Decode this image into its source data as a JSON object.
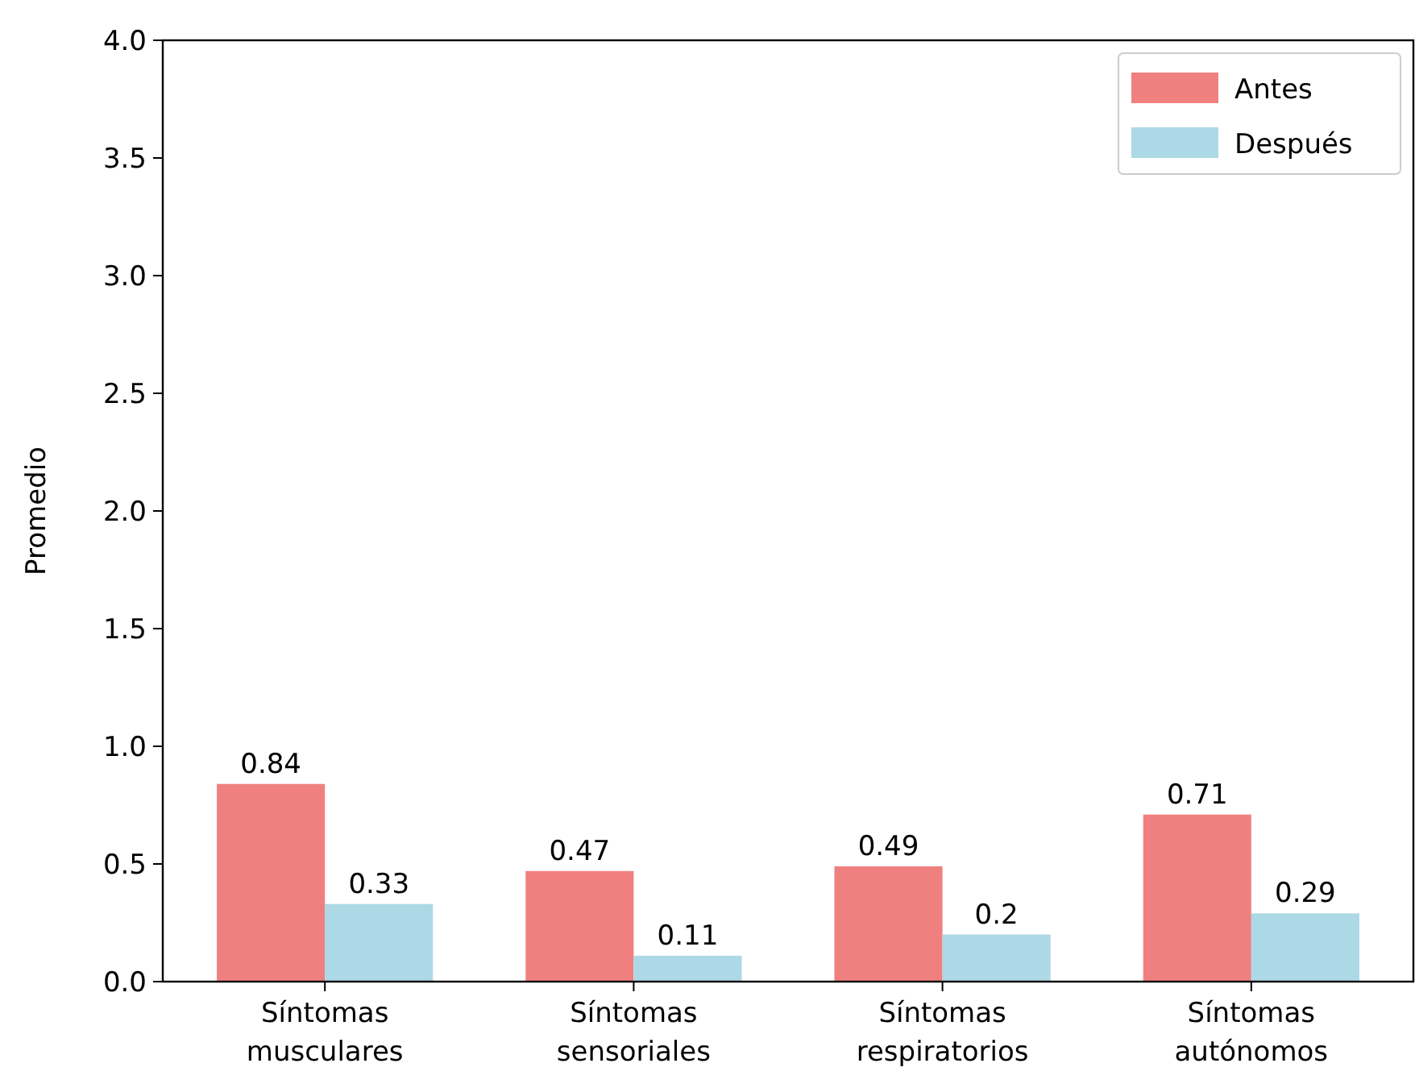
{
  "chart_data": {
    "type": "bar",
    "ylabel": "Promedio",
    "categories": [
      "Síntomas\nmusculares",
      "Síntomas\nsensoriales",
      "Síntomas\nrespiratorios",
      "Síntomas\nautónomos"
    ],
    "series": [
      {
        "name": "Antes",
        "color": "#f08080",
        "values": [
          0.84,
          0.47,
          0.49,
          0.71
        ]
      },
      {
        "name": "Después",
        "color": "#add8e6",
        "values": [
          0.33,
          0.11,
          0.2,
          0.29
        ]
      }
    ],
    "ylim": [
      0,
      4
    ],
    "yticks": [
      {
        "value": 0,
        "label": "0.0"
      },
      {
        "value": 0.5,
        "label": "0.5"
      },
      {
        "value": 1,
        "label": "1.0"
      },
      {
        "value": 1.5,
        "label": "1.5"
      },
      {
        "value": 2,
        "label": "2.0"
      },
      {
        "value": 2.5,
        "label": "2.5"
      },
      {
        "value": 3,
        "label": "3.0"
      },
      {
        "value": 3.5,
        "label": "3.5"
      },
      {
        "value": 4,
        "label": "4.0"
      }
    ],
    "data_labels": true,
    "legend": "top right",
    "grid": false
  }
}
